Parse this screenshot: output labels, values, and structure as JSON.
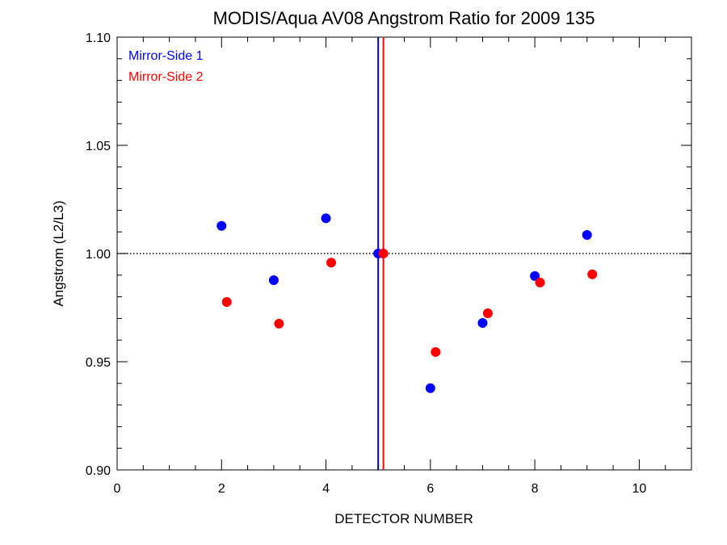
{
  "chart_data": {
    "type": "scatter",
    "title": "MODIS/Aqua AV08 Angstrom Ratio for 2009 135",
    "xlabel": "DETECTOR NUMBER",
    "ylabel": "Angstrom (L2/L3)",
    "xlim": [
      0,
      11
    ],
    "ylim": [
      0.9,
      1.1
    ],
    "x_ticks": [
      0,
      2,
      4,
      6,
      8,
      10
    ],
    "x_tick_labels": [
      "0",
      "2",
      "4",
      "6",
      "8",
      "10"
    ],
    "y_ticks": [
      0.9,
      0.95,
      1.0,
      1.05,
      1.1
    ],
    "y_tick_labels": [
      "0.90",
      "0.95",
      "1.00",
      "1.05",
      "1.10"
    ],
    "reference_line_y": 1.0,
    "legend_position": "top-left",
    "series": [
      {
        "name": "Mirror-Side 1",
        "color": "#0000ff",
        "vline_x": 5.0,
        "x": [
          2,
          3,
          4,
          5,
          6,
          7,
          8,
          9
        ],
        "y": [
          1.0128,
          0.9877,
          1.0163,
          1.0,
          0.9378,
          0.9679,
          0.9896,
          1.0086
        ]
      },
      {
        "name": "Mirror-Side 2",
        "color": "#ff0000",
        "vline_x": 5.1,
        "x": [
          2.1,
          3.1,
          4.1,
          5.1,
          6.1,
          7.1,
          8.1,
          9.1
        ],
        "y": [
          0.9776,
          0.9676,
          0.9958,
          1.0,
          0.9545,
          0.9724,
          0.9866,
          0.9904
        ]
      }
    ]
  }
}
